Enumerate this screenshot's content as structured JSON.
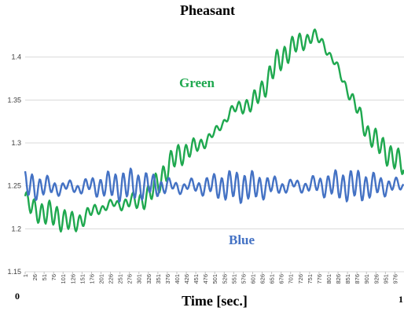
{
  "chart_data": {
    "type": "line",
    "title": "Pheasant",
    "xlabel": "Time [sec.]",
    "ylabel": "",
    "ylim": [
      1.15,
      1.45
    ],
    "y_ticks": [
      "1.15",
      "1.2",
      "1.25",
      "1.3",
      "1.35",
      "1.4"
    ],
    "x_range": [
      1,
      1000
    ],
    "x_tick_labels": [
      "1",
      "26",
      "51",
      "76",
      "101",
      "126",
      "151",
      "176",
      "201",
      "226",
      "251",
      "276",
      "301",
      "326",
      "351",
      "376",
      "401",
      "426",
      "451",
      "476",
      "501",
      "526",
      "551",
      "576",
      "601",
      "626",
      "651",
      "676",
      "701",
      "726",
      "751",
      "776",
      "801",
      "826",
      "851",
      "876",
      "901",
      "926",
      "951",
      "976"
    ],
    "corner_labels": {
      "left": "0",
      "right": "1"
    },
    "grid": "horizontal",
    "series": [
      {
        "name": "Green",
        "color": "#1fa84f",
        "oscillation_amplitude": 0.013,
        "oscillation_period": 20,
        "trend": {
          "x": [
            1,
            15,
            40,
            80,
            110,
            130,
            160,
            200,
            260,
            300,
            330,
            360,
            400,
            450,
            500,
            540,
            580,
            600,
            630,
            660,
            700,
            740,
            760,
            790,
            820,
            860,
            900,
            940,
            980,
            1000
          ],
          "y": [
            1.235,
            1.225,
            1.22,
            1.215,
            1.21,
            1.205,
            1.215,
            1.225,
            1.23,
            1.232,
            1.24,
            1.26,
            1.285,
            1.295,
            1.31,
            1.335,
            1.345,
            1.345,
            1.365,
            1.39,
            1.41,
            1.42,
            1.425,
            1.415,
            1.39,
            1.355,
            1.315,
            1.295,
            1.28,
            1.272
          ]
        }
      },
      {
        "name": "Blue",
        "color": "#4472c4",
        "oscillation_amplitude": 0.016,
        "oscillation_period": 20,
        "trend": {
          "x": [
            1,
            100,
            200,
            300,
            400,
            500,
            600,
            700,
            800,
            900,
            1000
          ],
          "y": [
            1.25,
            1.248,
            1.25,
            1.251,
            1.249,
            1.25,
            1.249,
            1.25,
            1.251,
            1.25,
            1.25
          ]
        }
      }
    ]
  }
}
